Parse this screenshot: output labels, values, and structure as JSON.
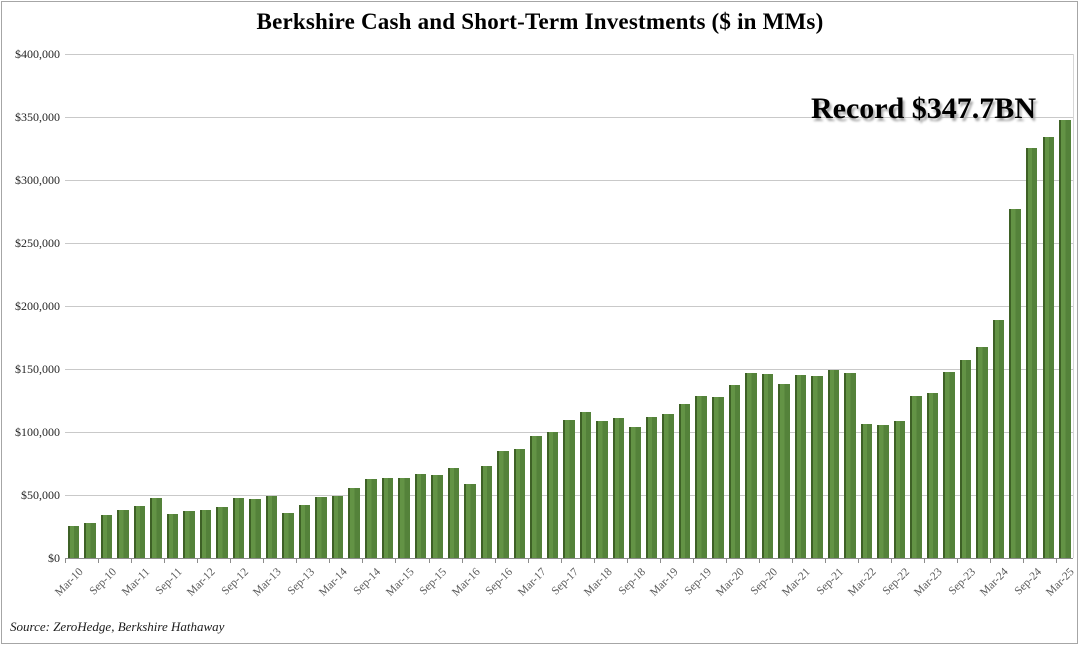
{
  "source": "Source: ZeroHedge, Berkshire Hathaway",
  "chart_data": {
    "type": "bar",
    "title": "Berkshire Cash and Short-Term Investments ($ in MMs)",
    "annotation": "Record $347.7BN",
    "bar_color": "#578539",
    "bar_edge_color": "#3e6126",
    "gridline_color": "#c9c9c9",
    "grid": "horizontal",
    "legend": "none",
    "ylim": [
      0,
      400000
    ],
    "y_ticks": [
      0,
      50000,
      100000,
      150000,
      200000,
      250000,
      300000,
      350000,
      400000
    ],
    "y_tick_labels": [
      "$0",
      "$50,000",
      "$100,000",
      "$150,000",
      "$200,000",
      "$250,000",
      "$300,000",
      "$350,000",
      "$400,000"
    ],
    "x_tick_labels": [
      "Mar-10",
      "Sep-10",
      "Mar-11",
      "Sep-11",
      "Mar-12",
      "Sep-12",
      "Mar-13",
      "Sep-13",
      "Mar-14",
      "Sep-14",
      "Mar-15",
      "Sep-15",
      "Mar-16",
      "Sep-16",
      "Mar-17",
      "Sep-17",
      "Mar-18",
      "Sep-18",
      "Mar-19",
      "Sep-19",
      "Mar-20",
      "Sep-20",
      "Mar-21",
      "Sep-21",
      "Mar-22",
      "Sep-22",
      "Mar-23",
      "Sep-23",
      "Mar-24",
      "Sep-24",
      "Mar-25"
    ],
    "categories": [
      "Mar-10",
      "Jun-10",
      "Sep-10",
      "Dec-10",
      "Mar-11",
      "Jun-11",
      "Sep-11",
      "Dec-11",
      "Mar-12",
      "Jun-12",
      "Sep-12",
      "Dec-12",
      "Mar-13",
      "Jun-13",
      "Sep-13",
      "Dec-13",
      "Mar-14",
      "Jun-14",
      "Sep-14",
      "Dec-14",
      "Mar-15",
      "Jun-15",
      "Sep-15",
      "Dec-15",
      "Mar-16",
      "Jun-16",
      "Sep-16",
      "Dec-16",
      "Mar-17",
      "Jun-17",
      "Sep-17",
      "Dec-17",
      "Mar-18",
      "Jun-18",
      "Sep-18",
      "Dec-18",
      "Mar-19",
      "Jun-19",
      "Sep-19",
      "Dec-19",
      "Mar-20",
      "Jun-20",
      "Sep-20",
      "Dec-20",
      "Mar-21",
      "Jun-21",
      "Sep-21",
      "Dec-21",
      "Mar-22",
      "Jun-22",
      "Sep-22",
      "Dec-22",
      "Mar-23",
      "Jun-23",
      "Sep-23",
      "Dec-23",
      "Mar-24",
      "Jun-24",
      "Sep-24",
      "Dec-24",
      "Mar-25"
    ],
    "values": [
      25685,
      27949,
      34462,
      38227,
      41045,
      47889,
      34775,
      37299,
      37797,
      40660,
      47782,
      46992,
      49095,
      35702,
      42079,
      48186,
      48955,
      55462,
      62378,
      63269,
      63713,
      66590,
      66260,
      71730,
      58340,
      72684,
      84840,
      86370,
      96500,
      99700,
      109300,
      116000,
      108600,
      111100,
      103600,
      111900,
      114200,
      122400,
      128200,
      128000,
      137300,
      146600,
      145700,
      138300,
      145400,
      144100,
      149200,
      146700,
      106300,
      105400,
      109000,
      128600,
      130600,
      147400,
      157200,
      167600,
      188900,
      276900,
      325200,
      334200,
      347700
    ]
  }
}
